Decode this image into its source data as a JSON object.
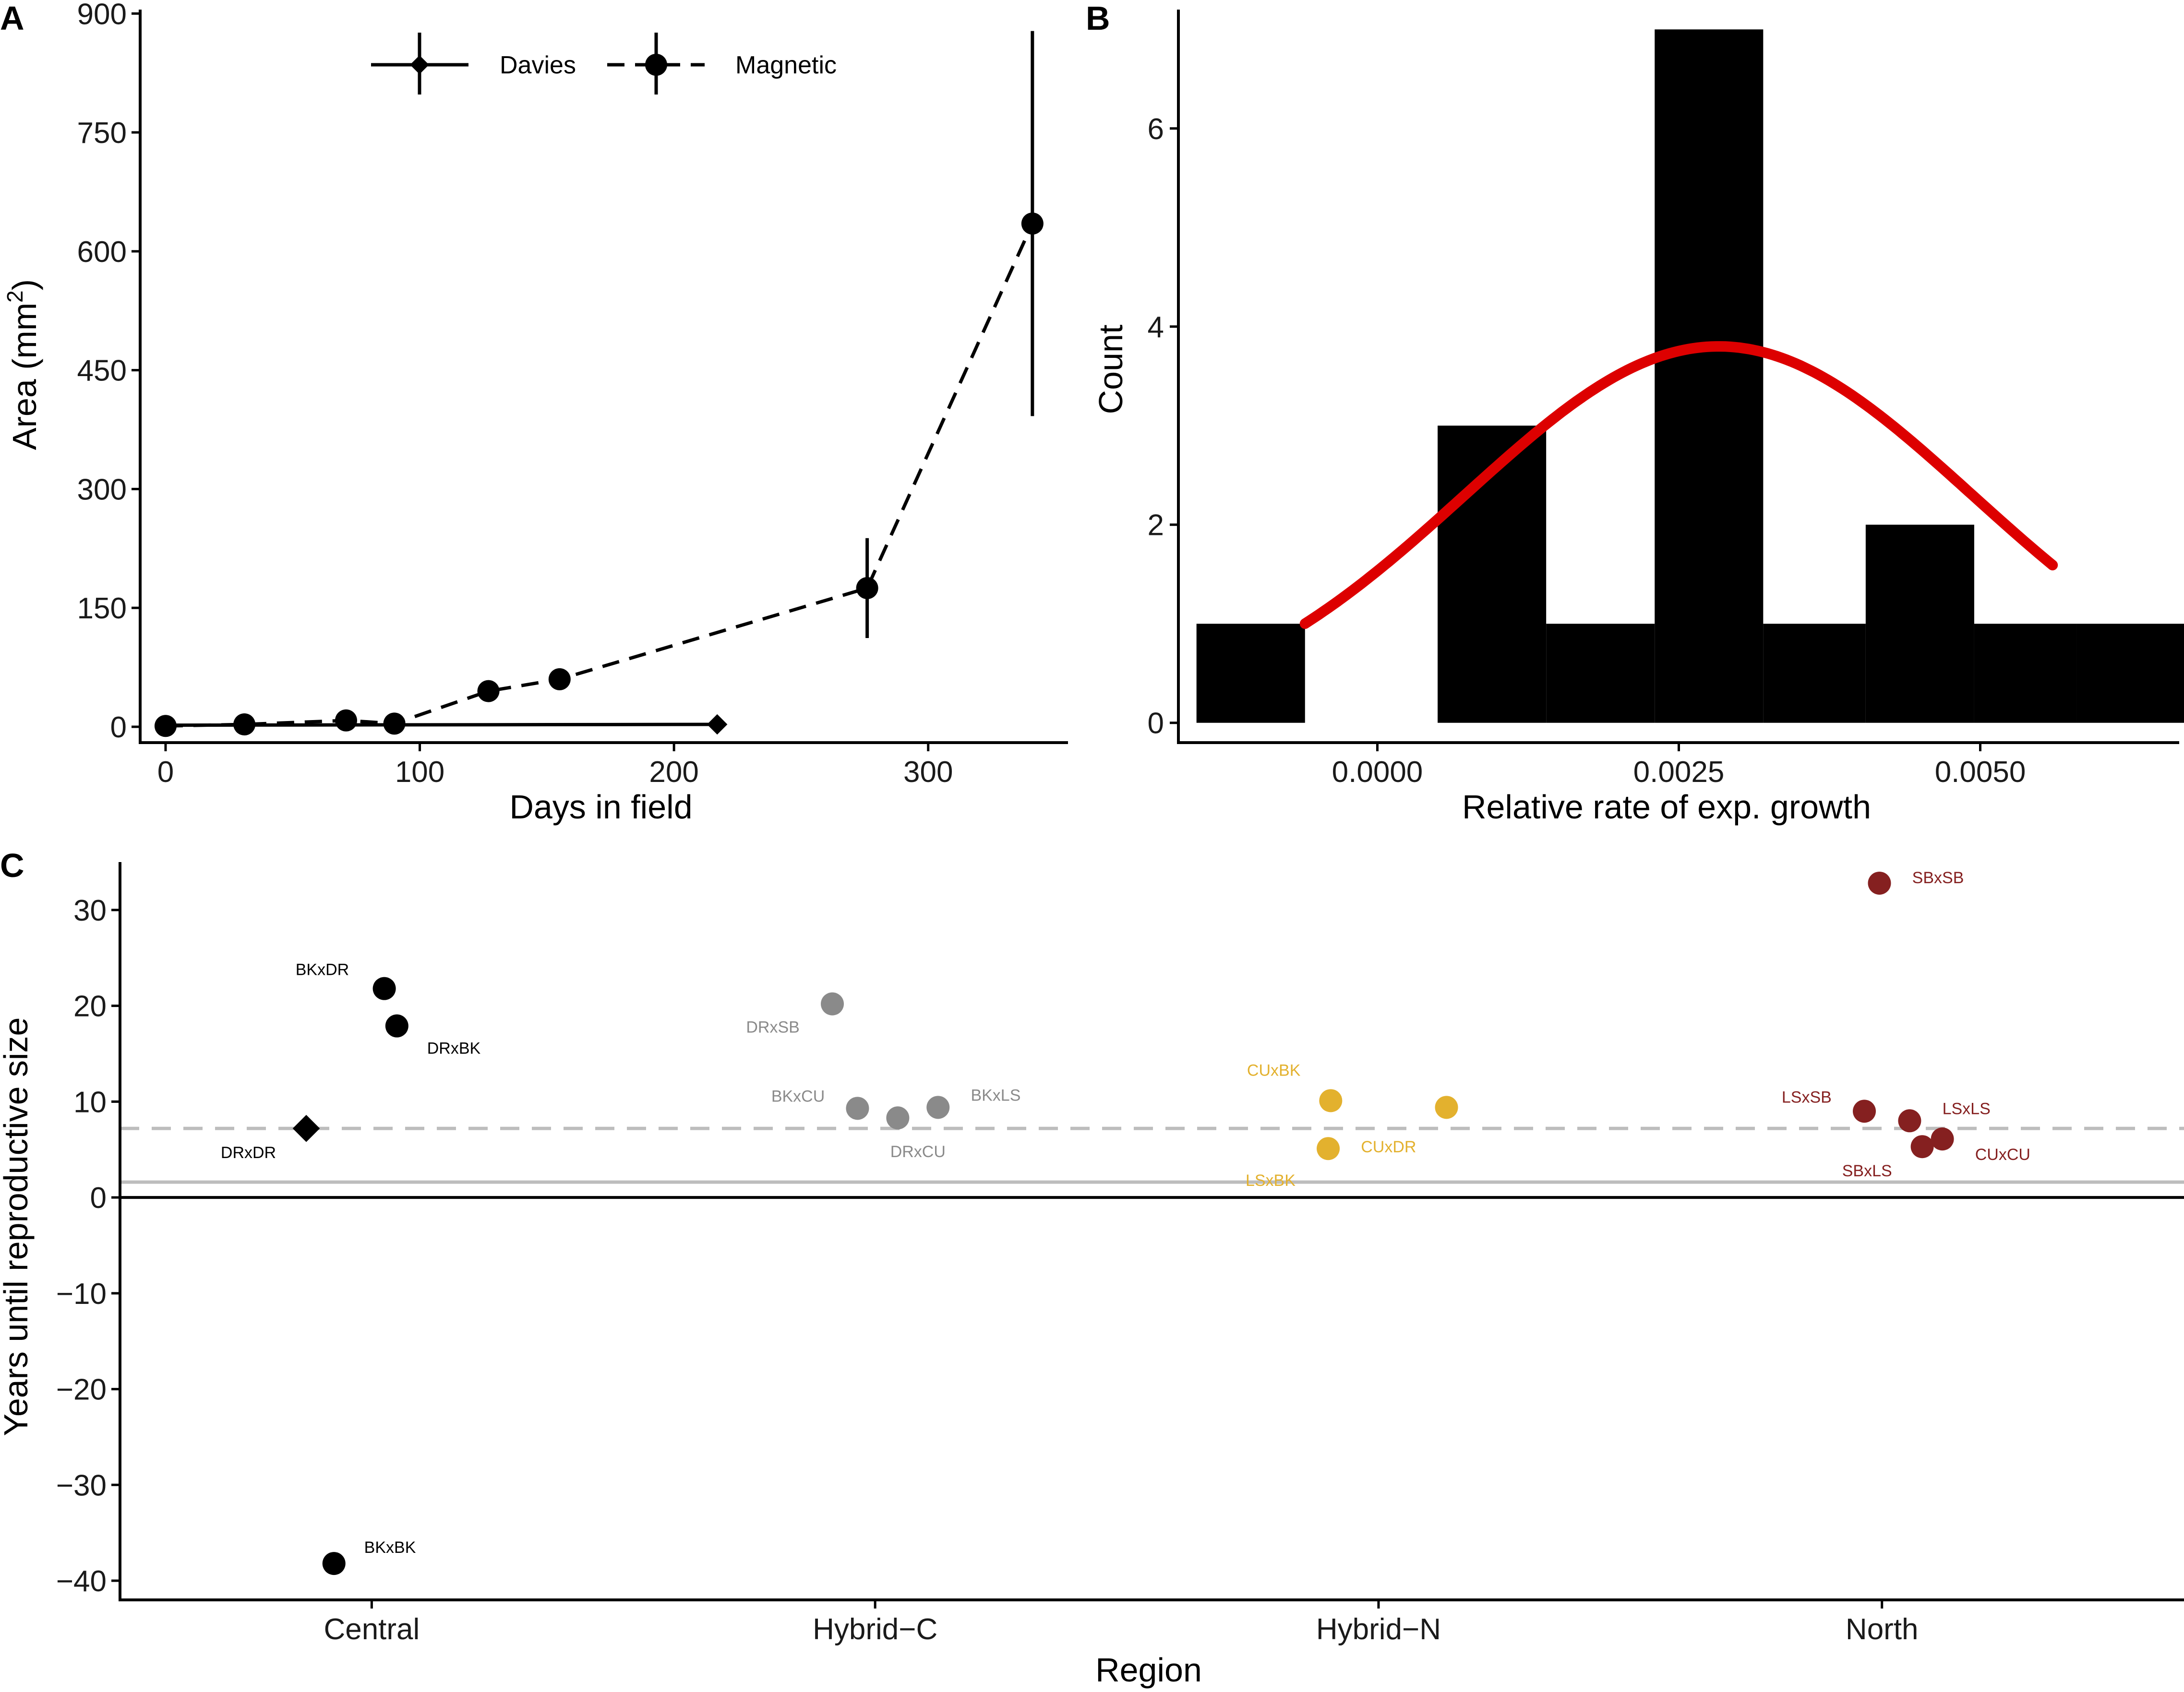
{
  "colors": {
    "axis": "#000000",
    "hist": "#000000",
    "curve": "#dd0000",
    "refline": "#bdbdbd",
    "central": "#000000",
    "hybrid_c": "#8a8a8a",
    "hybrid_n": "#e3b12e",
    "north": "#852020"
  },
  "chart_data": [
    {
      "panel": "A",
      "type": "line",
      "xlabel": "Days in field",
      "ylabel": "Area (mm",
      "ylabel_sup": "2",
      "ylabel_end": ")",
      "xlim": [
        -10,
        355
      ],
      "ylim": [
        -20,
        905
      ],
      "xticks": [
        0,
        100,
        200,
        300
      ],
      "yticks": [
        0,
        150,
        300,
        450,
        600,
        750,
        900
      ],
      "legend": {
        "position": "top",
        "entries": [
          "Davies",
          "Magnetic"
        ]
      },
      "series": [
        {
          "name": "Davies",
          "line": "solid",
          "marker": "diamond",
          "x": [
            0,
            217
          ],
          "y": [
            2,
            3
          ],
          "err": [
            0,
            0
          ]
        },
        {
          "name": "Magnetic",
          "line": "dashed",
          "marker": "circle",
          "x": [
            0,
            31,
            71,
            90,
            127,
            155,
            276,
            341
          ],
          "y": [
            1,
            3,
            8,
            4,
            45,
            60,
            175,
            635
          ],
          "err": [
            0,
            0,
            0,
            0,
            0,
            0,
            63,
            243
          ]
        }
      ]
    },
    {
      "panel": "B",
      "type": "bar",
      "xlabel": "Relative rate of exp. growth",
      "ylabel": "Count",
      "xlim": [
        -0.00165,
        0.00665
      ],
      "ylim": [
        -0.2,
        7.2
      ],
      "xticks": [
        "0.0000",
        "0.0025",
        "0.0050"
      ],
      "xtick_values": [
        0,
        0.0025,
        0.005
      ],
      "yticks": [
        0,
        2,
        4,
        6
      ],
      "bins": [
        {
          "x0": -0.0015,
          "x1": -0.0006,
          "count": 1
        },
        {
          "x0": -0.0006,
          "x1": 0.0005,
          "count": 0
        },
        {
          "x0": 0.0005,
          "x1": 0.0014,
          "count": 3
        },
        {
          "x0": 0.0014,
          "x1": 0.0023,
          "count": 1
        },
        {
          "x0": 0.0023,
          "x1": 0.0032,
          "count": 7
        },
        {
          "x0": 0.0032,
          "x1": 0.00405,
          "count": 1
        },
        {
          "x0": 0.00405,
          "x1": 0.00495,
          "count": 2
        },
        {
          "x0": 0.00495,
          "x1": 0.0058,
          "count": 1
        },
        {
          "x0": 0.0058,
          "x1": 0.0067,
          "count": 1
        }
      ],
      "curve": {
        "type": "normal",
        "mean": 0.00283,
        "sd": 0.0021,
        "peak": 3.8,
        "x_from": -0.0006,
        "x_to": 0.0056
      }
    },
    {
      "panel": "C",
      "type": "scatter",
      "xlabel": "Region",
      "ylabel": "Years until reproductive size",
      "categories": [
        "Central",
        "Hybrid−C",
        "Hybrid−N",
        "North"
      ],
      "xlim": [
        0.5,
        4.6
      ],
      "ylim": [
        -42,
        35
      ],
      "yticks": [
        -40,
        -30,
        -20,
        -10,
        0,
        10,
        20,
        30
      ],
      "ytick_labels": [
        "−40",
        "−30",
        "−20",
        "−10",
        "0",
        "10",
        "20",
        "30"
      ],
      "reference_lines": {
        "zero": 0,
        "solid_grey": 1.6,
        "dashed_grey": 7.2
      },
      "points": [
        {
          "label": "BKxDR",
          "region": "Central",
          "x": 1.025,
          "y": 21.8,
          "marker": "circle",
          "color_key": "central",
          "label_dx": -0.07,
          "label_dy": 2.0,
          "anchor": "end"
        },
        {
          "label": "DRxBK",
          "region": "Central",
          "x": 1.05,
          "y": 17.9,
          "marker": "circle",
          "color_key": "central",
          "label_dx": 0.06,
          "label_dy": -2.3,
          "anchor": "start"
        },
        {
          "label": "DRxDR",
          "region": "Central",
          "x": 0.87,
          "y": 7.2,
          "marker": "diamond",
          "color_key": "central",
          "label_dx": -0.06,
          "label_dy": -2.5,
          "anchor": "end"
        },
        {
          "label": "BKxBK",
          "region": "Central",
          "x": 0.925,
          "y": -38.2,
          "marker": "circle",
          "color_key": "central",
          "label_dx": 0.06,
          "label_dy": 1.7,
          "anchor": "start"
        },
        {
          "label": "DRxSB",
          "region": "Hybrid−C",
          "x": 1.915,
          "y": 20.2,
          "marker": "circle",
          "color_key": "hybrid_c",
          "label_dx": -0.065,
          "label_dy": -2.4,
          "anchor": "end"
        },
        {
          "label": "BKxCU",
          "region": "Hybrid−C",
          "x": 1.965,
          "y": 9.3,
          "marker": "circle",
          "color_key": "hybrid_c",
          "label_dx": -0.065,
          "label_dy": 1.3,
          "anchor": "end"
        },
        {
          "label": "DRxCU",
          "region": "Hybrid−C",
          "x": 2.045,
          "y": 8.3,
          "marker": "circle",
          "color_key": "hybrid_c",
          "label_dx": 0.04,
          "label_dy": -3.5,
          "anchor": "middle"
        },
        {
          "label": "BKxLS",
          "region": "Hybrid−C",
          "x": 2.125,
          "y": 9.4,
          "marker": "circle",
          "color_key": "hybrid_c",
          "label_dx": 0.065,
          "label_dy": 1.3,
          "anchor": "start"
        },
        {
          "label": "CUxBK",
          "region": "Hybrid−N",
          "x": 2.905,
          "y": 10.1,
          "marker": "circle",
          "color_key": "hybrid_n",
          "label_dx": -0.06,
          "label_dy": 3.2,
          "anchor": "end"
        },
        {
          "label": "",
          "region": "Hybrid−N",
          "x": 3.135,
          "y": 9.4,
          "marker": "circle",
          "color_key": "hybrid_n",
          "label_dx": 0,
          "label_dy": 0,
          "anchor": "start"
        },
        {
          "label": "CUxDR",
          "region": "Hybrid−N",
          "x": 2.9,
          "y": 5.1,
          "marker": "circle",
          "color_key": "hybrid_n",
          "label_dx": 0.065,
          "label_dy": 0.2,
          "anchor": "start"
        },
        {
          "label": "LSxBK",
          "region": "Hybrid−N",
          "x": 2.9,
          "y": 5.1,
          "marker": "none",
          "color_key": "hybrid_n",
          "label_dx": -0.065,
          "label_dy": -3.3,
          "anchor": "end"
        },
        {
          "label": "SBxSB",
          "region": "North",
          "x": 3.995,
          "y": 32.8,
          "marker": "circle",
          "color_key": "north",
          "label_dx": 0.065,
          "label_dy": 0.6,
          "anchor": "start"
        },
        {
          "label": "LSxSB",
          "region": "North",
          "x": 3.965,
          "y": 9.0,
          "marker": "circle",
          "color_key": "north",
          "label_dx": -0.065,
          "label_dy": 1.5,
          "anchor": "end"
        },
        {
          "label": "LSxLS",
          "region": "North",
          "x": 4.055,
          "y": 8.0,
          "marker": "circle",
          "color_key": "north",
          "label_dx": 0.065,
          "label_dy": 1.3,
          "anchor": "start"
        },
        {
          "label": "SBxLS",
          "region": "North",
          "x": 4.08,
          "y": 5.3,
          "marker": "circle",
          "color_key": "north",
          "label_dx": -0.06,
          "label_dy": -2.5,
          "anchor": "end"
        },
        {
          "label": "CUxCU",
          "region": "North",
          "x": 4.12,
          "y": 6.1,
          "marker": "circle",
          "color_key": "north",
          "label_dx": 0.065,
          "label_dy": -1.6,
          "anchor": "start"
        }
      ]
    }
  ]
}
